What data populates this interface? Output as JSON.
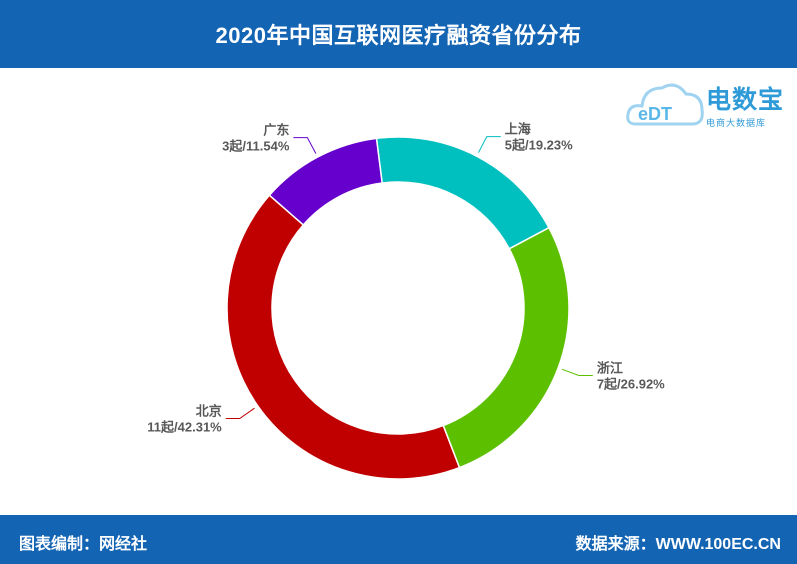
{
  "header": {
    "title": "2020年中国互联网医疗融资省份分布"
  },
  "footer": {
    "left_text": "图表编制：网经社",
    "right_text": "数据来源：WWW.100EC.CN"
  },
  "logo": {
    "brand": "电数宝",
    "sub": "电商大数据库",
    "mark": "eDT"
  },
  "chart_data": {
    "type": "pie",
    "style": "donut",
    "categories": [
      "上海",
      "广东",
      "北京",
      "浙江"
    ],
    "values": [
      5,
      3,
      11,
      7
    ],
    "percents": [
      "19.23%",
      "11.54%",
      "42.31%",
      "26.92%"
    ],
    "data_labels": [
      "5起/19.23%",
      "3起/11.54%",
      "11起/42.31%",
      "7起/26.92%"
    ],
    "colors": [
      "#00bfbf",
      "#6600cc",
      "#c00000",
      "#5cc000"
    ],
    "unit": "起"
  }
}
